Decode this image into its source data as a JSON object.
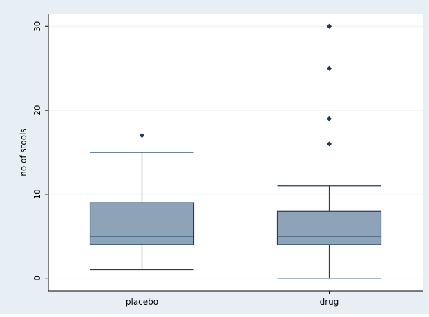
{
  "chart_data": {
    "type": "box",
    "title": "",
    "xlabel": "",
    "ylabel": "no of stools",
    "ylim": [
      -1.5,
      31.5
    ],
    "yticks": [
      0,
      10,
      20,
      30
    ],
    "y_tick_labels": [
      "0",
      "10",
      "20",
      "30"
    ],
    "grid": true,
    "legend": "none",
    "categories": [
      "placebo",
      "drug"
    ],
    "boxes": [
      {
        "category": "placebo",
        "whisker_low": 1,
        "q1": 4,
        "median": 5,
        "q3": 9,
        "whisker_high": 15,
        "outliers": [
          17
        ]
      },
      {
        "category": "drug",
        "whisker_low": 0,
        "q1": 4,
        "median": 5,
        "q3": 8,
        "whisker_high": 11,
        "outliers": [
          16,
          19,
          25,
          30
        ]
      }
    ],
    "colors": {
      "background": "#e8eff4",
      "plot_background": "#ffffff",
      "grid": "#eaf0f4",
      "box_fill": "#8ea3b8",
      "box_stroke": "#1f3f5e",
      "marker": "#1b3a5c",
      "axis": "#000000"
    }
  }
}
